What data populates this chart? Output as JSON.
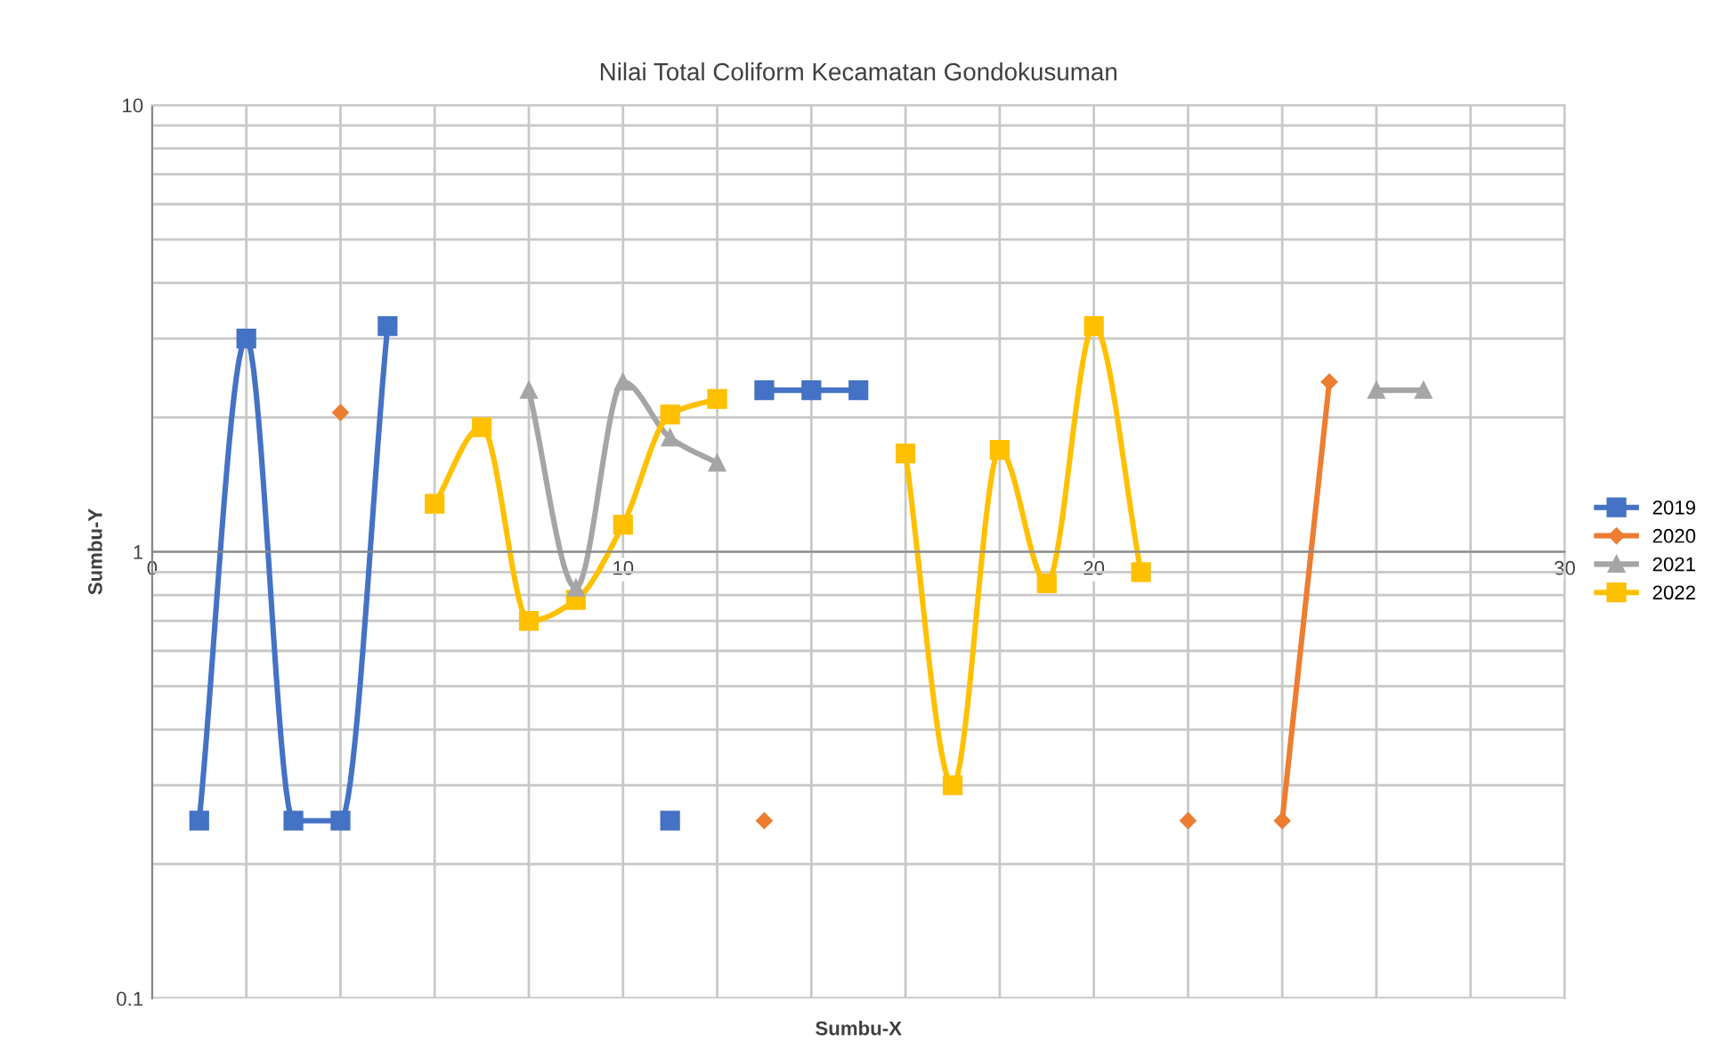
{
  "chart_data": {
    "type": "line",
    "title": "Nilai Total Coliform Kecamatan Gondokusuman",
    "xlabel": "Sumbu-X",
    "ylabel": "Sumbu-Y",
    "x": [
      1,
      2,
      3,
      4,
      5,
      6,
      7,
      8,
      9,
      10,
      11,
      12,
      13,
      14,
      15,
      16,
      17,
      18,
      19,
      20,
      21,
      22,
      23,
      24,
      25,
      26,
      27
    ],
    "series": [
      {
        "name": "2019",
        "color": "#4472c4",
        "marker": "square",
        "values": [
          0.25,
          3,
          0.25,
          0.25,
          3.2,
          null,
          null,
          null,
          null,
          null,
          0.25,
          null,
          2.3,
          2.3,
          2.3,
          null,
          null,
          null,
          null,
          null,
          null,
          null,
          null,
          null,
          null,
          null,
          null
        ]
      },
      {
        "name": "2020",
        "color": "#ed7d31",
        "marker": "diamond",
        "values": [
          null,
          null,
          null,
          2.05,
          null,
          null,
          null,
          null,
          null,
          null,
          null,
          null,
          0.25,
          null,
          null,
          null,
          null,
          null,
          null,
          null,
          null,
          0.25,
          null,
          0.25,
          2.4,
          null,
          null
        ]
      },
      {
        "name": "2021",
        "color": "#a5a5a5",
        "marker": "triangle",
        "values": [
          null,
          null,
          null,
          null,
          null,
          null,
          null,
          2.3,
          0.83,
          2.4,
          1.8,
          1.58,
          null,
          null,
          null,
          null,
          null,
          null,
          null,
          null,
          null,
          null,
          null,
          null,
          null,
          2.3,
          2.3
        ]
      },
      {
        "name": "2022",
        "color": "#ffc000",
        "marker": "square",
        "values": [
          null,
          null,
          null,
          null,
          null,
          1.28,
          1.9,
          0.7,
          0.78,
          1.15,
          2.03,
          2.2,
          null,
          null,
          null,
          1.66,
          0.3,
          1.69,
          0.85,
          3.2,
          0.9,
          null,
          null,
          null,
          null,
          null,
          null
        ]
      }
    ],
    "log": "y",
    "xlim": [
      0,
      30
    ],
    "xticks": [
      0,
      10,
      20,
      30
    ],
    "ylim": [
      0.1,
      10
    ],
    "yticks": [
      0.1,
      1,
      10
    ],
    "grid": true,
    "legend": "right",
    "line_style": "solid"
  }
}
